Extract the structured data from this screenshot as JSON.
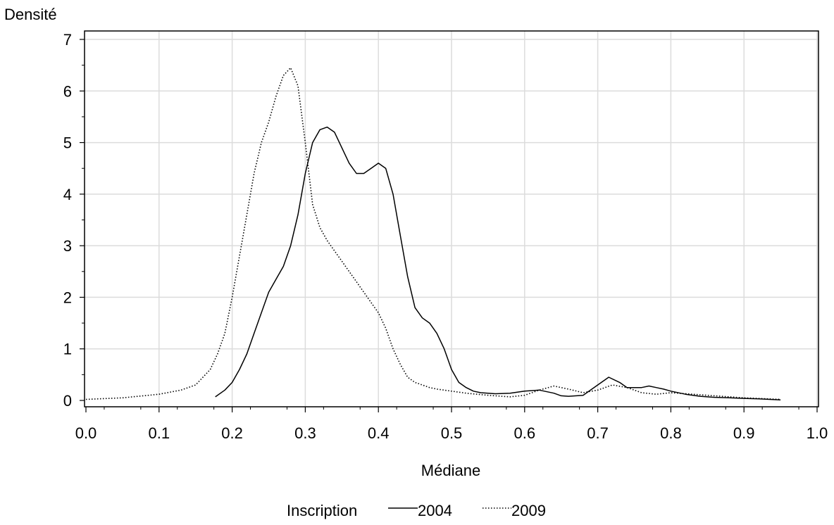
{
  "chart_data": {
    "type": "line",
    "ylabel": "Densité",
    "xlabel": "Médiane",
    "xlim": [
      0.0,
      1.0
    ],
    "ylim": [
      0,
      7
    ],
    "x_ticks": [
      "0.0",
      "0.1",
      "0.2",
      "0.3",
      "0.4",
      "0.5",
      "0.6",
      "0.7",
      "0.8",
      "0.9",
      "1.0"
    ],
    "y_ticks": [
      "0",
      "1",
      "2",
      "3",
      "4",
      "5",
      "6",
      "7"
    ],
    "grid": true,
    "legend": {
      "title": "Inscription",
      "placement": "bottom"
    },
    "series": [
      {
        "name": "2004",
        "style": "solid",
        "x": [
          0.177,
          0.19,
          0.2,
          0.21,
          0.22,
          0.23,
          0.24,
          0.25,
          0.26,
          0.27,
          0.28,
          0.29,
          0.3,
          0.31,
          0.32,
          0.33,
          0.34,
          0.35,
          0.36,
          0.37,
          0.38,
          0.39,
          0.4,
          0.41,
          0.42,
          0.43,
          0.44,
          0.45,
          0.46,
          0.47,
          0.48,
          0.49,
          0.5,
          0.51,
          0.52,
          0.53,
          0.54,
          0.56,
          0.58,
          0.6,
          0.62,
          0.64,
          0.65,
          0.66,
          0.68,
          0.7,
          0.715,
          0.73,
          0.74,
          0.76,
          0.77,
          0.78,
          0.79,
          0.8,
          0.82,
          0.84,
          0.86,
          0.88,
          0.9,
          0.92,
          0.95
        ],
        "values": [
          0.07,
          0.2,
          0.35,
          0.6,
          0.9,
          1.3,
          1.7,
          2.1,
          2.35,
          2.6,
          3.0,
          3.6,
          4.4,
          5.0,
          5.25,
          5.3,
          5.2,
          4.9,
          4.6,
          4.4,
          4.4,
          4.5,
          4.6,
          4.5,
          4.0,
          3.2,
          2.4,
          1.8,
          1.6,
          1.5,
          1.3,
          1.0,
          0.6,
          0.35,
          0.25,
          0.18,
          0.15,
          0.13,
          0.14,
          0.18,
          0.2,
          0.14,
          0.09,
          0.08,
          0.1,
          0.3,
          0.45,
          0.35,
          0.25,
          0.25,
          0.28,
          0.25,
          0.22,
          0.18,
          0.12,
          0.08,
          0.06,
          0.05,
          0.04,
          0.03,
          0.01
        ]
      },
      {
        "name": "2009",
        "style": "dotted",
        "x": [
          0.0,
          0.05,
          0.1,
          0.13,
          0.15,
          0.17,
          0.18,
          0.19,
          0.2,
          0.21,
          0.22,
          0.23,
          0.24,
          0.25,
          0.26,
          0.27,
          0.28,
          0.29,
          0.3,
          0.31,
          0.32,
          0.33,
          0.34,
          0.35,
          0.36,
          0.37,
          0.38,
          0.39,
          0.4,
          0.41,
          0.42,
          0.43,
          0.44,
          0.45,
          0.46,
          0.47,
          0.48,
          0.5,
          0.52,
          0.55,
          0.58,
          0.6,
          0.62,
          0.64,
          0.66,
          0.68,
          0.7,
          0.72,
          0.74,
          0.76,
          0.78,
          0.8,
          0.85,
          0.9,
          0.95
        ],
        "values": [
          0.02,
          0.05,
          0.12,
          0.2,
          0.3,
          0.6,
          0.9,
          1.3,
          2.0,
          2.8,
          3.6,
          4.4,
          5.0,
          5.4,
          5.9,
          6.3,
          6.45,
          6.1,
          5.0,
          3.8,
          3.35,
          3.1,
          2.9,
          2.7,
          2.5,
          2.3,
          2.1,
          1.9,
          1.7,
          1.4,
          1.0,
          0.7,
          0.45,
          0.35,
          0.3,
          0.25,
          0.22,
          0.18,
          0.14,
          0.1,
          0.07,
          0.1,
          0.2,
          0.28,
          0.22,
          0.15,
          0.2,
          0.3,
          0.25,
          0.15,
          0.12,
          0.15,
          0.1,
          0.05,
          0.02
        ]
      }
    ]
  }
}
